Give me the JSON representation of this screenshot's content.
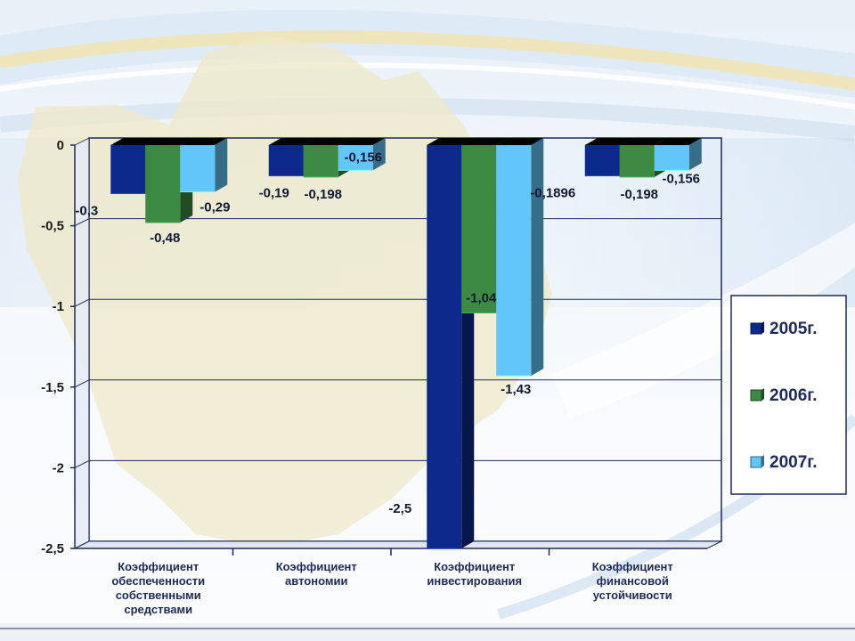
{
  "chart_data": {
    "type": "bar",
    "categories": [
      [
        "Коэффициент",
        "обеспеченности",
        "собственными",
        "средствами"
      ],
      [
        "Коэффициент",
        "автономии"
      ],
      [
        "Коэффициент",
        "инвестирования"
      ],
      [
        "Коэффициент",
        "финансовой",
        "устойчивости"
      ]
    ],
    "series": [
      {
        "name": "2005г.",
        "color": "#0c2a8c",
        "values": [
          -0.3,
          -0.19,
          -2.5,
          -0.1896
        ],
        "labels": [
          "-0,3",
          "-0,19",
          "-2,5",
          "-0,1896"
        ]
      },
      {
        "name": "2006г.",
        "color": "#3d8a45",
        "values": [
          -0.48,
          -0.198,
          -1.04,
          -0.198
        ],
        "labels": [
          "-0,48",
          "-0,198",
          "-1,04",
          "-0,198"
        ]
      },
      {
        "name": "2007г.",
        "color": "#62c6f8",
        "values": [
          -0.29,
          -0.156,
          -1.43,
          -0.156
        ],
        "labels": [
          "-0,29",
          "-0,156",
          "-1,43",
          "-0,156"
        ]
      }
    ],
    "y_ticks": [
      0,
      -0.5,
      -1,
      -1.5,
      -2,
      -2.5
    ],
    "y_tick_labels": [
      "0",
      "-0,5",
      "-1",
      "-1,5",
      "-2",
      "-2,5"
    ],
    "ylim": [
      -2.5,
      0
    ],
    "grid": true,
    "legend_position": "right",
    "title": "",
    "xlabel": "",
    "ylabel": ""
  }
}
